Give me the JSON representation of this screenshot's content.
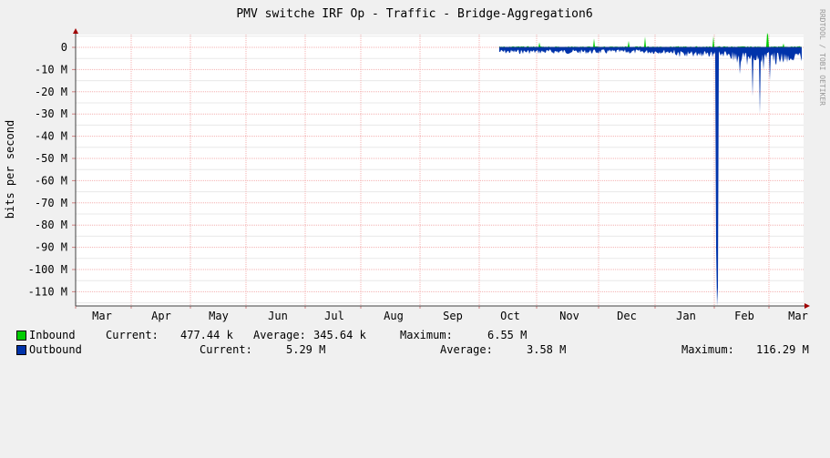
{
  "chart_data": {
    "type": "area",
    "title": "PMV switche IRF Op - Traffic - Bridge-Aggregation6",
    "ylabel": "bits per second",
    "watermark": "RRDTOOL / TOBI OETIKER",
    "x_tick_labels": [
      "Mar",
      "Apr",
      "May",
      "Jun",
      "Jul",
      "Aug",
      "Sep",
      "Oct",
      "Nov",
      "Dec",
      "Jan",
      "Feb",
      "Mar"
    ],
    "y_tick_labels": [
      "0",
      "-10 M",
      "-20 M",
      "-30 M",
      "-40 M",
      "-50 M",
      "-60 M",
      "-70 M",
      "-80 M",
      "-90 M",
      "-100 M",
      "-110 M"
    ],
    "ylim_mbps": [
      -116.29,
      4
    ],
    "data_start": "late Sep",
    "series": [
      {
        "name": "Inbound",
        "color": "#00cc00",
        "stat_labels": {
          "current": "Current:",
          "average": "Average:",
          "maximum": "Maximum:"
        },
        "current": "477.44 k",
        "average": "345.64 k",
        "maximum": "6.55 M",
        "spikes_mbps": [
          {
            "x": "early Nov",
            "y": 2.3
          },
          {
            "x": "mid Nov",
            "y": 4.0
          },
          {
            "x": "early Dec",
            "y": 2.9
          },
          {
            "x": "mid Dec",
            "y": 4.8
          },
          {
            "x": "mid Jan",
            "y": 5.0
          },
          {
            "x": "late Feb",
            "y": 6.55
          }
        ]
      },
      {
        "name": "Outbound",
        "color": "#0033aa",
        "stat_labels": {
          "current": "Current:",
          "average": "Average:",
          "maximum": "Maximum:"
        },
        "current": "5.29 M",
        "average": "3.58 M",
        "maximum": "116.29 M",
        "spikes_mbps": [
          {
            "x": "mid Jan",
            "y": -90
          },
          {
            "x": "late Jan",
            "y": -116.29
          },
          {
            "x": "early Feb",
            "y": -12
          },
          {
            "x": "mid Feb",
            "y": -30
          },
          {
            "x": "late Feb",
            "y": -15
          }
        ]
      }
    ],
    "grid": true
  }
}
